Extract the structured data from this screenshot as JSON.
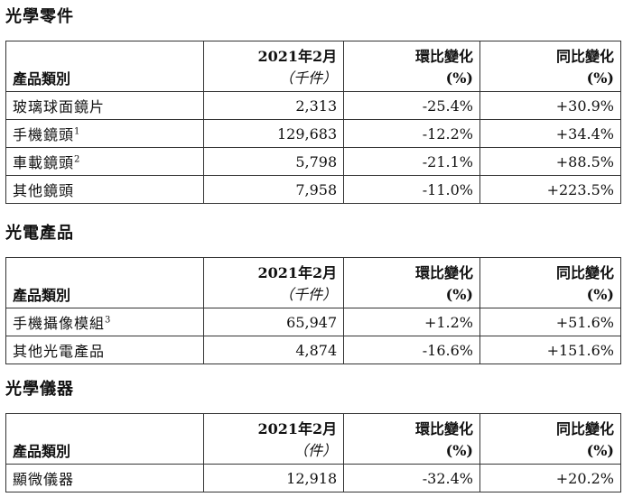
{
  "sections": [
    {
      "title": "光學零件",
      "header": {
        "category": "產品類別",
        "period": "2021年2月",
        "unit": "（千件）",
        "mom": "環比變化",
        "mom_unit": "(%)",
        "yoy": "同比變化",
        "yoy_unit": "(%)"
      },
      "rows": [
        {
          "category": "玻璃球面鏡片",
          "note": "",
          "quantity": "2,313",
          "mom": "-25.4%",
          "yoy": "+30.9%"
        },
        {
          "category": "手機鏡頭",
          "note": "1",
          "quantity": "129,683",
          "mom": "-12.2%",
          "yoy": "+34.4%"
        },
        {
          "category": "車載鏡頭",
          "note": "2",
          "quantity": "5,798",
          "mom": "-21.1%",
          "yoy": "+88.5%"
        },
        {
          "category": "其他鏡頭",
          "note": "",
          "quantity": "7,958",
          "mom": "-11.0%",
          "yoy": "+223.5%"
        }
      ]
    },
    {
      "title": "光電產品",
      "header": {
        "category": "產品類別",
        "period": "2021年2月",
        "unit": "（千件）",
        "mom": "環比變化",
        "mom_unit": "(%)",
        "yoy": "同比變化",
        "yoy_unit": "(%)"
      },
      "rows": [
        {
          "category": "手機攝像模組",
          "note": "3",
          "quantity": "65,947",
          "mom": "+1.2%",
          "yoy": "+51.6%"
        },
        {
          "category": "其他光電產品",
          "note": "",
          "quantity": "4,874",
          "mom": "-16.6%",
          "yoy": "+151.6%"
        }
      ]
    },
    {
      "title": "光學儀器",
      "header": {
        "category": "產品類別",
        "period": "2021年2月",
        "unit": "（件）",
        "mom": "環比變化",
        "mom_unit": "(%)",
        "yoy": "同比變化",
        "yoy_unit": "(%)"
      },
      "rows": [
        {
          "category": "顯微儀器",
          "note": "",
          "quantity": "12,918",
          "mom": "-32.4%",
          "yoy": "+20.2%"
        }
      ]
    }
  ]
}
